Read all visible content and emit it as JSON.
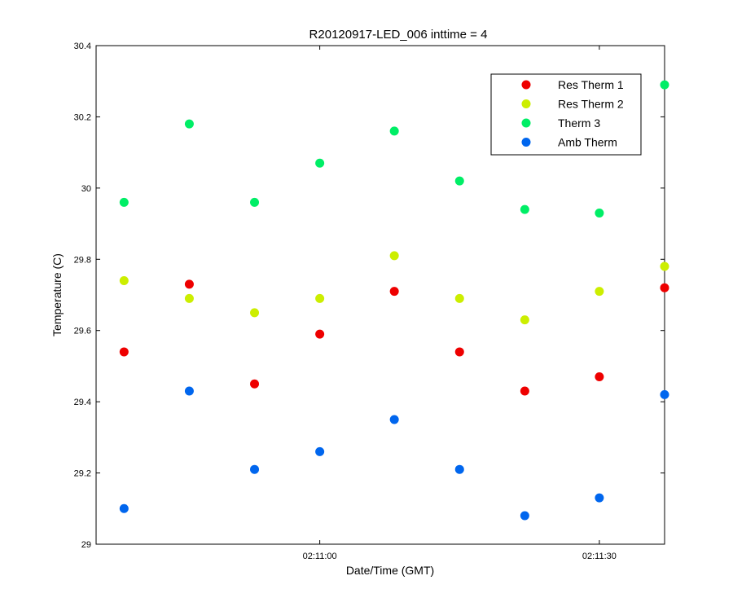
{
  "chart_data": {
    "type": "scatter",
    "title": "R20120917-LED_006 inttime = 4",
    "xlabel": "Date/Time (GMT)",
    "ylabel": "Temperature (C)",
    "x_unit": "seconds",
    "x_ticks": [
      {
        "value": "02:11:00",
        "label": "02:11:00"
      },
      {
        "value": "02:11:30",
        "label": "02:11:30"
      }
    ],
    "xlim": [
      "02:10:36",
      "02:11:37"
    ],
    "ylim": [
      29.0,
      30.4
    ],
    "y_ticks": [
      29,
      29.2,
      29.4,
      29.6,
      29.8,
      30,
      30.2,
      30.4
    ],
    "y_tick_labels": [
      "29",
      "29.2",
      "29.4",
      "29.6",
      "29.8",
      "30",
      "30.2",
      "30.4"
    ],
    "grid": false,
    "legend_position": "top-right",
    "x": [
      "02:10:39",
      "02:10:46",
      "02:10:53",
      "02:11:00",
      "02:11:08",
      "02:11:15",
      "02:11:22",
      "02:11:30",
      "02:11:37"
    ],
    "series": [
      {
        "name": "Res Therm 1",
        "color": "#ee0000",
        "values": [
          29.54,
          29.73,
          29.45,
          29.59,
          29.71,
          29.54,
          29.43,
          29.47,
          29.72
        ]
      },
      {
        "name": "Res Therm 2",
        "color": "#ccee00",
        "values": [
          29.74,
          29.69,
          29.65,
          29.69,
          29.81,
          29.69,
          29.63,
          29.71,
          29.78
        ]
      },
      {
        "name": "Therm 3",
        "color": "#00ee66",
        "values": [
          29.96,
          30.18,
          29.96,
          30.07,
          30.16,
          30.02,
          29.94,
          29.93,
          30.29
        ]
      },
      {
        "name": "Amb Therm",
        "color": "#0066ee",
        "values": [
          29.1,
          29.43,
          29.21,
          29.26,
          29.35,
          29.21,
          29.08,
          29.13,
          29.42
        ]
      }
    ]
  }
}
